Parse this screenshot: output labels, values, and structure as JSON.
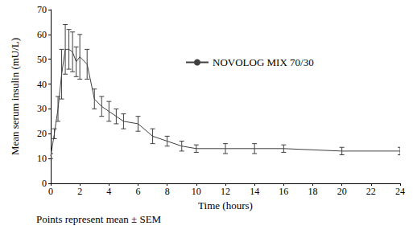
{
  "chart_data": {
    "type": "line",
    "x_label": "Time (hours)",
    "y_label": "Mean serum insulin (mU/L)",
    "annotation": "Points represent mean ± SEM",
    "x": [
      0,
      0.25,
      0.5,
      0.75,
      1,
      1.25,
      1.5,
      1.75,
      2,
      2.5,
      3,
      3.5,
      4,
      4.5,
      5,
      6,
      7,
      8,
      9,
      10,
      12,
      14,
      16,
      20,
      24
    ],
    "series": [
      {
        "name": "NOVOLOG MIX 70/30",
        "color": "#404040",
        "values": [
          11,
          20,
          30,
          44,
          54,
          54,
          53,
          49,
          51,
          48,
          34,
          31,
          29,
          27,
          25,
          24,
          19,
          17,
          15,
          14,
          14,
          14,
          14,
          13,
          13
        ],
        "error": [
          1,
          2,
          5,
          10,
          10,
          8,
          8,
          6,
          9,
          6,
          4,
          4,
          4,
          3,
          3,
          3,
          3,
          2,
          2,
          1.5,
          2,
          2,
          1.5,
          1.5,
          1.5
        ]
      }
    ],
    "xlim": [
      0,
      24
    ],
    "xticks": [
      0,
      2,
      4,
      6,
      8,
      10,
      12,
      14,
      16,
      18,
      20,
      22,
      24
    ],
    "ylim": [
      0,
      70
    ],
    "yticks": [
      0,
      10,
      20,
      30,
      40,
      50,
      60,
      70
    ],
    "grid": false,
    "legend": "upper right"
  }
}
